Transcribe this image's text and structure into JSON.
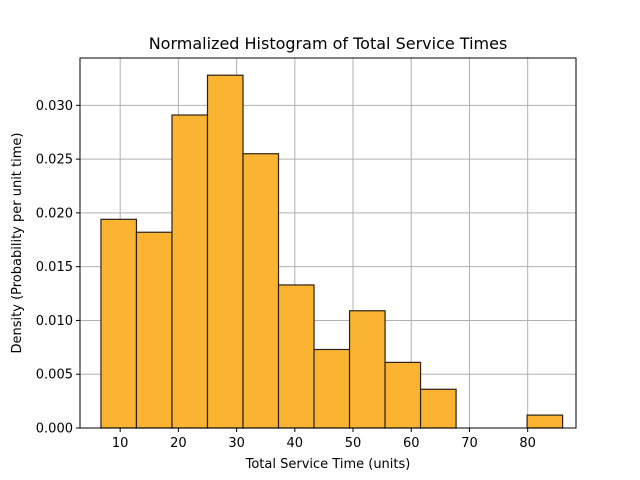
{
  "chart_data": {
    "type": "bar",
    "subtype": "histogram",
    "title": "Normalized Histogram of Total Service Times",
    "xlabel": "Total Service Time (units)",
    "ylabel": "Density (Probability per unit time)",
    "xlim": [
      3.1,
      88.3
    ],
    "ylim": [
      0,
      0.0344
    ],
    "xticks": [
      10,
      20,
      30,
      40,
      50,
      60,
      70,
      80
    ],
    "yticks": [
      0.0,
      0.005,
      0.01,
      0.015,
      0.02,
      0.025,
      0.03
    ],
    "ytick_labels": [
      "0.000",
      "0.005",
      "0.010",
      "0.015",
      "0.020",
      "0.025",
      "0.030"
    ],
    "bin_edges": [
      6.7,
      12.8,
      18.9,
      25.0,
      31.1,
      37.2,
      43.3,
      49.4,
      55.5,
      61.6,
      67.7,
      73.8,
      79.9,
      86.0
    ],
    "values": [
      0.0194,
      0.0182,
      0.0291,
      0.0328,
      0.0255,
      0.0133,
      0.0073,
      0.0109,
      0.0061,
      0.0036,
      0.0,
      0.0,
      0.0012
    ],
    "grid": true,
    "colors": {
      "bar_fill": "#fbb431",
      "bar_edge": "#2b2118",
      "grid": "#b0b0b0"
    }
  }
}
